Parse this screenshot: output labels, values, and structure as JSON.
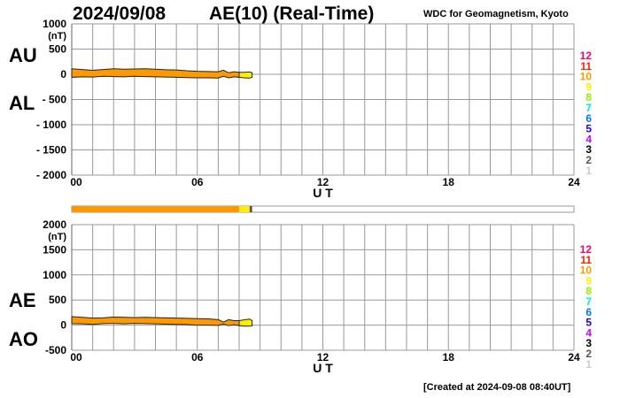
{
  "header": {
    "date": "2024/09/08",
    "title": "AE(10) (Real-Time)",
    "source": "WDC for Geomagnetism, Kyoto"
  },
  "footer": {
    "created": "[Created at 2024-09-08 08:40UT]"
  },
  "activity_scale": {
    "labels": [
      "12",
      "11",
      "10",
      "9",
      "8",
      "7",
      "6",
      "5",
      "4",
      "3",
      "2",
      "1"
    ],
    "colors": [
      "#ff0066",
      "#ff2200",
      "#ff9900",
      "#ffee00",
      "#99ee00",
      "#00eecc",
      "#0077ff",
      "#2200dd",
      "#cc00ff",
      "#000000",
      "#555555",
      "#cccccc"
    ]
  },
  "activity_bar": {
    "segments": [
      {
        "from": 0,
        "to": 8.0,
        "color": "#ff9900"
      },
      {
        "from": 8.0,
        "to": 8.5,
        "color": "#ffee00"
      },
      {
        "from": 8.5,
        "to": 8.62,
        "color": "#555555"
      }
    ]
  },
  "chart_data": [
    {
      "type": "area",
      "name": "AU/AL",
      "series_labels": [
        "AU",
        "AL"
      ],
      "ylabel": "(nT)",
      "xlabel": "U T",
      "ylim": [
        -2000,
        1000
      ],
      "yticks": [
        1000,
        500,
        0,
        -500,
        -1000,
        -1500,
        -2000
      ],
      "ytick_labels": [
        "1000",
        "500",
        "0",
        "- 500",
        "- 1000",
        "- 1500",
        "- 2000"
      ],
      "xlim": [
        0,
        24
      ],
      "xticks": [
        0,
        6,
        12,
        18,
        24
      ],
      "xtick_labels": [
        "00",
        "06",
        "12",
        "18",
        "24"
      ],
      "grid": true,
      "x": [
        0,
        0.5,
        1,
        1.5,
        2,
        2.5,
        3,
        3.5,
        4,
        4.5,
        5,
        5.5,
        6,
        6.5,
        7,
        7.25,
        7.5,
        7.75,
        8,
        8.25,
        8.5,
        8.62
      ],
      "upper": [
        110,
        95,
        80,
        95,
        110,
        100,
        105,
        110,
        100,
        90,
        85,
        70,
        60,
        55,
        50,
        80,
        30,
        50,
        40,
        40,
        45,
        30
      ],
      "lower": [
        -60,
        -50,
        -55,
        -40,
        -45,
        -50,
        -40,
        -45,
        -50,
        -55,
        -60,
        -65,
        -70,
        -70,
        -75,
        -40,
        -70,
        -50,
        -60,
        -70,
        -75,
        -60
      ],
      "colors": {
        "active": "#ff9900",
        "recent": "#ffee00"
      },
      "recent_from": 8.0
    },
    {
      "type": "area",
      "name": "AE/AO",
      "series_labels": [
        "AE",
        "AO"
      ],
      "ylabel": "(nT)",
      "xlabel": "U T",
      "ylim": [
        -500,
        2000
      ],
      "yticks": [
        2000,
        1500,
        1000,
        500,
        0,
        -500
      ],
      "ytick_labels": [
        "2000",
        "1500",
        "1000",
        "500",
        "0",
        "-500"
      ],
      "xlim": [
        0,
        24
      ],
      "xticks": [
        0,
        6,
        12,
        18,
        24
      ],
      "xtick_labels": [
        "00",
        "06",
        "12",
        "18",
        "24"
      ],
      "grid": true,
      "x": [
        0,
        0.5,
        1,
        1.5,
        2,
        2.5,
        3,
        3.5,
        4,
        4.5,
        5,
        5.5,
        6,
        6.5,
        7,
        7.25,
        7.5,
        7.75,
        8,
        8.25,
        8.5,
        8.62
      ],
      "upper": [
        170,
        155,
        140,
        145,
        160,
        155,
        150,
        155,
        150,
        145,
        140,
        135,
        130,
        125,
        110,
        60,
        110,
        90,
        90,
        105,
        120,
        90
      ],
      "lower": [
        30,
        25,
        15,
        30,
        35,
        25,
        35,
        30,
        25,
        20,
        15,
        10,
        0,
        0,
        -5,
        20,
        -10,
        5,
        -10,
        -20,
        -20,
        -15
      ],
      "colors": {
        "active": "#ff9900",
        "recent": "#ffee00"
      },
      "recent_from": 8.0
    }
  ]
}
